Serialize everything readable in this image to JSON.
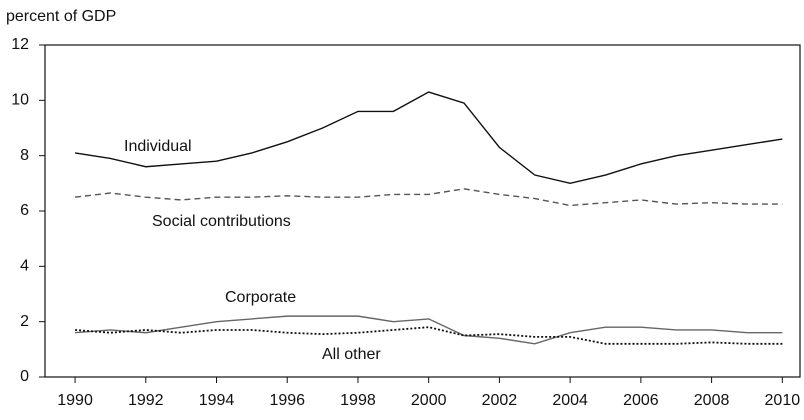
{
  "chart_data": {
    "type": "line",
    "y_label": "percent of GDP",
    "x": [
      1990,
      1991,
      1992,
      1993,
      1994,
      1995,
      1996,
      1997,
      1998,
      1999,
      2000,
      2001,
      2002,
      2003,
      2004,
      2005,
      2006,
      2007,
      2008,
      2009,
      2010
    ],
    "series": [
      {
        "name": "Individual",
        "color": "#111111",
        "style": "solid",
        "values": [
          8.1,
          7.9,
          7.6,
          7.7,
          7.8,
          8.1,
          8.5,
          9.0,
          9.6,
          9.6,
          10.3,
          9.9,
          8.3,
          7.3,
          7.0,
          7.3,
          7.7,
          8.0,
          8.2,
          8.4,
          8.6
        ]
      },
      {
        "name": "Social contributions",
        "color": "#555555",
        "style": "dashed",
        "values": [
          6.5,
          6.65,
          6.5,
          6.4,
          6.5,
          6.5,
          6.55,
          6.5,
          6.5,
          6.6,
          6.6,
          6.8,
          6.6,
          6.45,
          6.2,
          6.3,
          6.4,
          6.25,
          6.3,
          6.25,
          6.25
        ]
      },
      {
        "name": "Corporate",
        "color": "#666666",
        "style": "solid",
        "values": [
          1.6,
          1.7,
          1.6,
          1.8,
          2.0,
          2.1,
          2.2,
          2.2,
          2.2,
          2.0,
          2.1,
          1.5,
          1.4,
          1.2,
          1.6,
          1.8,
          1.8,
          1.7,
          1.7,
          1.6,
          1.6
        ]
      },
      {
        "name": "All other",
        "color": "#111111",
        "style": "dotted",
        "values": [
          1.7,
          1.6,
          1.7,
          1.6,
          1.7,
          1.7,
          1.6,
          1.55,
          1.6,
          1.7,
          1.8,
          1.5,
          1.55,
          1.45,
          1.45,
          1.2,
          1.2,
          1.2,
          1.25,
          1.2,
          1.2
        ]
      }
    ],
    "xlim": [
      1989.15,
      2010.5
    ],
    "xticks": [
      1990,
      1992,
      1994,
      1996,
      1998,
      2000,
      2002,
      2004,
      2006,
      2008,
      2010
    ],
    "ylim": [
      0,
      12
    ],
    "yticks": [
      0,
      2,
      4,
      6,
      8,
      10,
      12
    ]
  }
}
